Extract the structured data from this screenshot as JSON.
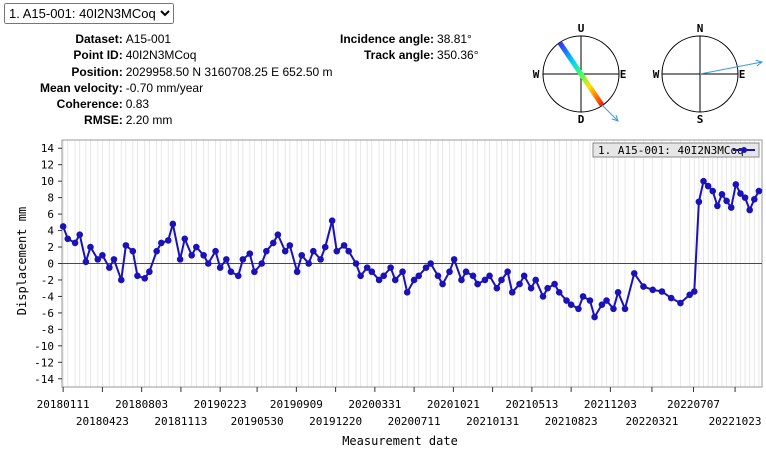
{
  "dropdown": {
    "selected": "1. A15-001: 40I2N3MCoq"
  },
  "info": [
    {
      "label": "Dataset:",
      "value": "A15-001"
    },
    {
      "label": "Point ID:",
      "value": "40I2N3MCoq"
    },
    {
      "label": "Position:",
      "value": "2029958.50 N 3160708.25 E 652.50 m"
    },
    {
      "label": "Mean velocity:",
      "value": "-0.70 mm/year"
    },
    {
      "label": "Coherence:",
      "value": "0.83"
    },
    {
      "label": "RMSE:",
      "value": "2.20 mm"
    }
  ],
  "angles": [
    {
      "label": "Incidence angle:",
      "value": "38.81°"
    },
    {
      "label": "Track angle:",
      "value": "350.36°"
    }
  ],
  "compass_los": {
    "up": "U",
    "down": "D",
    "west": "W",
    "east": "E"
  },
  "compass_map": {
    "north": "N",
    "south": "S",
    "west": "W",
    "east": "E"
  },
  "chart_data": {
    "type": "line",
    "y_label": "Displacement mm",
    "x_label": "Measurement date",
    "xlim": [
      "20180108",
      "20230101"
    ],
    "ylim": [
      -15,
      15
    ],
    "xticks": [
      "20180111",
      "20180423",
      "20180803",
      "20181113",
      "20190223",
      "20190530",
      "20190909",
      "20191220",
      "20200331",
      "20200711",
      "20201021",
      "20210131",
      "20210513",
      "20210823",
      "20211203",
      "20220321",
      "20220707",
      "20221023"
    ],
    "yticks": [
      14,
      12,
      10,
      8,
      6,
      4,
      2,
      0,
      -2,
      -4,
      -6,
      -8,
      -10,
      -12,
      -14
    ],
    "x": [
      "20180111",
      "20180123",
      "20180211",
      "20180223",
      "20180311",
      "20180323",
      "20180411",
      "20180423",
      "20180511",
      "20180523",
      "20180611",
      "20180623",
      "20180711",
      "20180723",
      "20180811",
      "20180823",
      "20180911",
      "20180923",
      "20181011",
      "20181023",
      "20181111",
      "20181123",
      "20181211",
      "20181223",
      "20190111",
      "20190123",
      "20190211",
      "20190223",
      "20190311",
      "20190323",
      "20190411",
      "20190423",
      "20190511",
      "20190523",
      "20190611",
      "20190623",
      "20190711",
      "20190723",
      "20190811",
      "20190823",
      "20190911",
      "20190923",
      "20191011",
      "20191023",
      "20191111",
      "20191123",
      "20191211",
      "20191223",
      "20200111",
      "20200123",
      "20200211",
      "20200223",
      "20200311",
      "20200323",
      "20200411",
      "20200423",
      "20200511",
      "20200523",
      "20200611",
      "20200623",
      "20200711",
      "20200723",
      "20200811",
      "20200823",
      "20200911",
      "20200923",
      "20201011",
      "20201023",
      "20201111",
      "20201123",
      "20201211",
      "20201223",
      "20210111",
      "20210123",
      "20210211",
      "20210223",
      "20210311",
      "20210323",
      "20210411",
      "20210423",
      "20210511",
      "20210523",
      "20210611",
      "20210623",
      "20210711",
      "20210723",
      "20210811",
      "20210823",
      "20210911",
      "20210923",
      "20211011",
      "20211023",
      "20211111",
      "20211123",
      "20211211",
      "20211223",
      "20220110",
      "20220203",
      "20220227",
      "20220323",
      "20220416",
      "20220510",
      "20220603",
      "20220627",
      "20220709",
      "20220721",
      "20220802",
      "20220814",
      "20220826",
      "20220907",
      "20220919",
      "20221001",
      "20221013",
      "20221025",
      "20221106",
      "20221118",
      "20221130",
      "20221212",
      "20221224"
    ],
    "series": [
      {
        "name": "1. A15-001: 40I2N3MCoq",
        "color": "#1a12b8",
        "values": [
          4.5,
          3,
          2.5,
          3.5,
          0.2,
          2,
          0.5,
          1,
          -0.5,
          0.5,
          -2,
          2.2,
          1.5,
          -1.5,
          -1.8,
          -1,
          1.5,
          2.5,
          2.8,
          4.8,
          0.5,
          3,
          1,
          2,
          1,
          0,
          1.5,
          -0.5,
          0.5,
          -1,
          -1.5,
          0.5,
          1.2,
          -1,
          0,
          1.5,
          2.5,
          3.5,
          1.5,
          2.2,
          -1,
          1,
          0,
          1.5,
          0.5,
          2,
          5.2,
          1.5,
          2.2,
          1.5,
          0,
          -1.5,
          -0.5,
          -1,
          -2,
          -1.5,
          -0.5,
          -2,
          -1,
          -3.5,
          -2,
          -1.5,
          -0.5,
          0,
          -1.5,
          -2.5,
          -1,
          0.5,
          -2,
          -1,
          -1.5,
          -2.5,
          -2,
          -1.5,
          -3,
          -2,
          -1,
          -3.5,
          -2.5,
          -1.5,
          -3,
          -2,
          -4,
          -3,
          -2.5,
          -3.5,
          -4.5,
          -5,
          -5.5,
          -4,
          -4.5,
          -6.5,
          -5,
          -4.5,
          -5.5,
          -3.5,
          -5.5,
          -1.2,
          -2.8,
          -3.2,
          -3.4,
          -4.2,
          -4.8,
          -3.8,
          -3.4,
          7.5,
          10,
          9.4,
          8.8,
          7,
          8.4,
          7.6,
          6.8,
          9.6,
          8.5,
          8,
          6.5,
          7.8,
          8.8
        ]
      }
    ]
  }
}
